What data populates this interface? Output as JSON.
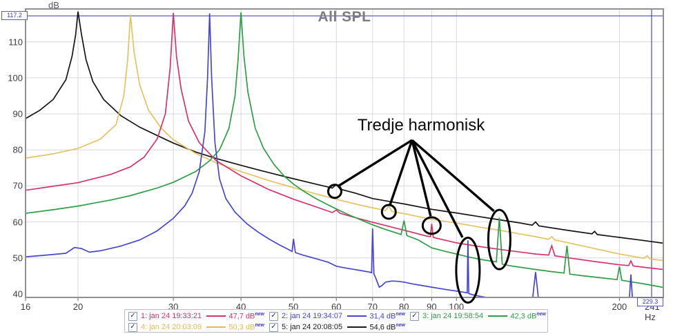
{
  "axes": {
    "y_unit": "dB",
    "x_ticks": [
      16,
      20,
      30,
      40,
      50,
      60,
      70,
      80,
      90,
      100,
      200
    ],
    "x_end_label": "241 Hz",
    "x_min": 16,
    "x_max": 241,
    "y_ticks": [
      110,
      100,
      90,
      80,
      70,
      60,
      50,
      40
    ],
    "y_min": 40,
    "y_max": 119
  },
  "cursor": {
    "db_label": "117.2",
    "freq_label": "229.3",
    "db": 117.2,
    "freq_hz": 229.3
  },
  "annotation": {
    "label": "Tredje harmonisk",
    "vertex": {
      "f": 82.8,
      "db": 82.7
    },
    "pointer_lines": [
      {
        "f": 60.4,
        "db": 69.9
      },
      {
        "f": 75.3,
        "db": 64.5
      },
      {
        "f": 89.6,
        "db": 61.6
      },
      {
        "f": 102.6,
        "db": 55.7
      },
      {
        "f": 117.3,
        "db": 63.0
      }
    ],
    "circles": [
      {
        "f": 59.6,
        "db": 68.5,
        "rx": 9.5,
        "ry": 9.5
      },
      {
        "f": 75.0,
        "db": 62.8,
        "rx": 10,
        "ry": 10
      },
      {
        "f": 90.0,
        "db": 59.0,
        "rx": 13,
        "ry": 12
      },
      {
        "f": 105.0,
        "db": 46.6,
        "rx": 17,
        "ry": 47
      },
      {
        "f": 120.0,
        "db": 55.1,
        "rx": 16,
        "ry": 43
      }
    ]
  },
  "legend": {
    "entries": [
      {
        "checked": true,
        "label": "1: jan 24 19:33:21",
        "value": "47,7 dB",
        "tag": "new",
        "color": "#d6336c"
      },
      {
        "checked": true,
        "label": "2: jan 24 19:34:07",
        "value": "31,4 dB",
        "tag": "new",
        "color": "#4646d2"
      },
      {
        "checked": true,
        "label": "3: jan 24 19:58:54",
        "value": "42,3 dB",
        "tag": "new",
        "color": "#2f9e44"
      },
      {
        "checked": true,
        "label": "4: jan 24 20:03:09",
        "value": "50,3 dB",
        "tag": "new",
        "color": "#e3bd54"
      },
      {
        "checked": true,
        "label": "5: jan 24 20:08:05",
        "value": "54,6 dB",
        "tag": "new",
        "color": "#1a1a1a"
      }
    ]
  },
  "chart_data": {
    "type": "line",
    "title": "All SPL",
    "x_scale": "log",
    "xlabel": "Hz",
    "ylabel": "dB",
    "xlim": [
      16,
      241
    ],
    "ylim": [
      40,
      119
    ],
    "grid": true,
    "legend_position": "bottom",
    "series": [
      {
        "name": "5: jan 24 20:08:05",
        "color": "#141414",
        "fundamental_hz": 20,
        "cursor_db": 54.6,
        "points": [
          [
            16,
            88.7
          ],
          [
            17,
            91
          ],
          [
            18,
            94
          ],
          [
            19,
            99.5
          ],
          [
            19.5,
            106
          ],
          [
            19.8,
            112
          ],
          [
            20,
            118.4
          ],
          [
            20.3,
            112
          ],
          [
            20.7,
            105
          ],
          [
            21.3,
            99
          ],
          [
            22.3,
            94
          ],
          [
            24,
            89.5
          ],
          [
            26,
            86.3
          ],
          [
            28,
            84
          ],
          [
            30,
            81.9
          ],
          [
            33,
            79.4
          ],
          [
            36,
            77.6
          ],
          [
            40,
            75.7
          ],
          [
            45,
            73.7
          ],
          [
            50,
            72
          ],
          [
            55,
            70.5
          ],
          [
            59,
            69.4
          ],
          [
            60,
            70.4
          ],
          [
            61,
            69.1
          ],
          [
            65,
            68
          ],
          [
            70,
            66.5
          ],
          [
            75,
            65.7
          ],
          [
            80,
            65
          ],
          [
            90,
            63.5
          ],
          [
            100,
            62.5
          ],
          [
            110,
            61.5
          ],
          [
            120,
            60.6
          ],
          [
            130,
            59.8
          ],
          [
            138,
            59.1
          ],
          [
            140,
            60
          ],
          [
            142,
            58.9
          ],
          [
            160,
            57.7
          ],
          [
            178,
            56.7
          ],
          [
            180,
            57.4
          ],
          [
            182,
            56.5
          ],
          [
            200,
            55.7
          ],
          [
            220,
            54.9
          ],
          [
            241,
            54.1
          ]
        ]
      },
      {
        "name": "4: jan 24 20:03:09",
        "color": "#e6c35f",
        "fundamental_hz": 25,
        "cursor_db": 50.3,
        "points": [
          [
            16,
            77.7
          ],
          [
            18,
            78.9
          ],
          [
            20,
            80.4
          ],
          [
            22,
            83
          ],
          [
            23.5,
            87
          ],
          [
            24.3,
            95
          ],
          [
            24.7,
            105
          ],
          [
            25,
            117.5
          ],
          [
            25.4,
            107
          ],
          [
            26,
            98
          ],
          [
            27,
            91
          ],
          [
            28.5,
            86
          ],
          [
            30,
            82.8
          ],
          [
            33,
            79
          ],
          [
            36,
            76.4
          ],
          [
            40,
            74
          ],
          [
            45,
            71.5
          ],
          [
            50,
            69.5
          ],
          [
            55,
            67.8
          ],
          [
            60,
            66.3
          ],
          [
            65,
            65
          ],
          [
            70,
            63.9
          ],
          [
            74,
            63.2
          ],
          [
            75,
            64.4
          ],
          [
            76,
            62.9
          ],
          [
            80,
            62.3
          ],
          [
            90,
            60.7
          ],
          [
            100,
            59.7
          ],
          [
            110,
            58.6
          ],
          [
            120,
            57.7
          ],
          [
            140,
            55.9
          ],
          [
            148,
            55.2
          ],
          [
            150,
            55.9
          ],
          [
            152,
            55
          ],
          [
            160,
            54.3
          ],
          [
            180,
            52.6
          ],
          [
            200,
            51.1
          ],
          [
            222,
            49.9
          ],
          [
            225,
            50.6
          ],
          [
            228,
            49.7
          ],
          [
            241,
            49.3
          ]
        ]
      },
      {
        "name": "1: jan 24 19:33:21",
        "color": "#d6336c",
        "fundamental_hz": 30,
        "cursor_db": 47.7,
        "points": [
          [
            16,
            68.8
          ],
          [
            18,
            69.9
          ],
          [
            20,
            70.9
          ],
          [
            23,
            73.2
          ],
          [
            25,
            75.3
          ],
          [
            26.5,
            78
          ],
          [
            28,
            83
          ],
          [
            29,
            90
          ],
          [
            29.6,
            103
          ],
          [
            30,
            118
          ],
          [
            30.4,
            106
          ],
          [
            31,
            97
          ],
          [
            32,
            88
          ],
          [
            33.5,
            82
          ],
          [
            36,
            77
          ],
          [
            40,
            72.8
          ],
          [
            45,
            69
          ],
          [
            50,
            66.3
          ],
          [
            55,
            64.2
          ],
          [
            59,
            62.6
          ],
          [
            60,
            63.3
          ],
          [
            61,
            62.4
          ],
          [
            65,
            61.2
          ],
          [
            70,
            59.9
          ],
          [
            80,
            57.7
          ],
          [
            88,
            56.1
          ],
          [
            89.5,
            55.9
          ],
          [
            90,
            59.5
          ],
          [
            90.6,
            55.7
          ],
          [
            100,
            54.2
          ],
          [
            110,
            53.2
          ],
          [
            120,
            52.4
          ],
          [
            140,
            51.1
          ],
          [
            148,
            50.8
          ],
          [
            150,
            53.4
          ],
          [
            152,
            50.6
          ],
          [
            160,
            50.1
          ],
          [
            180,
            49
          ],
          [
            200,
            48.1
          ],
          [
            208,
            47.9
          ],
          [
            210,
            49.2
          ],
          [
            212,
            47.8
          ],
          [
            225,
            47.3
          ],
          [
            241,
            46.8
          ]
        ]
      },
      {
        "name": "3: jan 24 19:58:54",
        "color": "#2f9e44",
        "fundamental_hz": 40,
        "cursor_db": 42.3,
        "points": [
          [
            16,
            62.4
          ],
          [
            18,
            63.4
          ],
          [
            20,
            64.4
          ],
          [
            23,
            66.1
          ],
          [
            25,
            67.3
          ],
          [
            28,
            69.4
          ],
          [
            30,
            71
          ],
          [
            33,
            74
          ],
          [
            35,
            77
          ],
          [
            36.5,
            80
          ],
          [
            38,
            86
          ],
          [
            39,
            95
          ],
          [
            39.5,
            105
          ],
          [
            40,
            118.2
          ],
          [
            40.5,
            106
          ],
          [
            41.2,
            96
          ],
          [
            42.5,
            86
          ],
          [
            44,
            80.5
          ],
          [
            46,
            76
          ],
          [
            48,
            72.8
          ],
          [
            50,
            70.5
          ],
          [
            52.5,
            68.3
          ],
          [
            55,
            66.5
          ],
          [
            58,
            64.7
          ],
          [
            60,
            63.6
          ],
          [
            63,
            62.1
          ],
          [
            66,
            60.8
          ],
          [
            70,
            59.2
          ],
          [
            74,
            57.9
          ],
          [
            78,
            56.8
          ],
          [
            79,
            56.5
          ],
          [
            80,
            60.4
          ],
          [
            81,
            56.2
          ],
          [
            85,
            55
          ],
          [
            90,
            52.8
          ],
          [
            95,
            51.9
          ],
          [
            100,
            51.1
          ],
          [
            105,
            50.3
          ],
          [
            110,
            49.7
          ],
          [
            115,
            49.2
          ],
          [
            118.5,
            48.9
          ],
          [
            120,
            61.2
          ],
          [
            121.5,
            48.3
          ],
          [
            125,
            47.9
          ],
          [
            130,
            47.5
          ],
          [
            140,
            46.8
          ],
          [
            150,
            46.2
          ],
          [
            158,
            45.8
          ],
          [
            160,
            53.4
          ],
          [
            162,
            45.5
          ],
          [
            170,
            45.1
          ],
          [
            180,
            44.7
          ],
          [
            190,
            44.3
          ],
          [
            198,
            44.0
          ],
          [
            200,
            47.6
          ],
          [
            202,
            43.8
          ],
          [
            210,
            43.4
          ],
          [
            220,
            42.9
          ],
          [
            230,
            42.4
          ],
          [
            241,
            41.8
          ]
        ]
      },
      {
        "name": "2: jan 24 19:34:07",
        "color": "#4646d2",
        "fundamental_hz": 35,
        "cursor_db": 31.4,
        "points": [
          [
            16,
            50.3
          ],
          [
            17.5,
            50.8
          ],
          [
            19,
            51.3
          ],
          [
            19.7,
            52.9
          ],
          [
            20.3,
            52.6
          ],
          [
            21,
            51.6
          ],
          [
            22,
            52
          ],
          [
            24,
            53.3
          ],
          [
            26,
            55
          ],
          [
            28,
            57.5
          ],
          [
            30,
            61
          ],
          [
            31.5,
            64.5
          ],
          [
            32.5,
            68
          ],
          [
            33.5,
            74
          ],
          [
            34.3,
            85
          ],
          [
            34.7,
            100
          ],
          [
            35,
            117.9
          ],
          [
            35.3,
            100
          ],
          [
            35.8,
            82
          ],
          [
            36.5,
            72
          ],
          [
            37.5,
            66.5
          ],
          [
            39,
            62.7
          ],
          [
            41,
            59.5
          ],
          [
            43,
            57.2
          ],
          [
            45,
            55.3
          ],
          [
            47,
            53.7
          ],
          [
            49,
            52.3
          ],
          [
            49.7,
            51.8
          ],
          [
            50,
            55.3
          ],
          [
            50.4,
            51.5
          ],
          [
            52,
            50.8
          ],
          [
            55,
            49.8
          ],
          [
            58,
            48.8
          ],
          [
            60,
            47.7
          ],
          [
            63,
            47.1
          ],
          [
            66,
            46.6
          ],
          [
            69,
            46.1
          ],
          [
            69.7,
            45.9
          ],
          [
            70,
            58.2
          ],
          [
            70.4,
            45.6
          ],
          [
            71,
            44.3
          ],
          [
            72,
            41.9
          ],
          [
            72.8,
            42.3
          ],
          [
            74,
            43.3
          ],
          [
            76,
            43.6
          ],
          [
            78,
            43.5
          ],
          [
            80,
            43.3
          ],
          [
            83,
            42.8
          ],
          [
            86,
            42.4
          ],
          [
            90,
            41.9
          ],
          [
            95,
            41.3
          ],
          [
            100,
            40.8
          ],
          [
            104,
            40.4
          ],
          [
            104.7,
            40.3
          ],
          [
            105,
            54.9
          ],
          [
            105.4,
            40.1
          ],
          [
            107,
            39.8
          ],
          [
            110,
            39.4
          ],
          [
            115,
            38.9
          ],
          [
            120,
            38.5
          ],
          [
            130,
            38
          ],
          [
            138,
            37.7
          ],
          [
            140,
            46.1
          ],
          [
            142,
            37.6
          ],
          [
            160,
            37
          ],
          [
            180,
            36.4
          ],
          [
            205,
            35.8
          ],
          [
            208,
            35.7
          ],
          [
            210,
            45.4
          ],
          [
            212,
            35.6
          ],
          [
            225,
            35.3
          ],
          [
            241,
            35
          ]
        ]
      }
    ]
  }
}
